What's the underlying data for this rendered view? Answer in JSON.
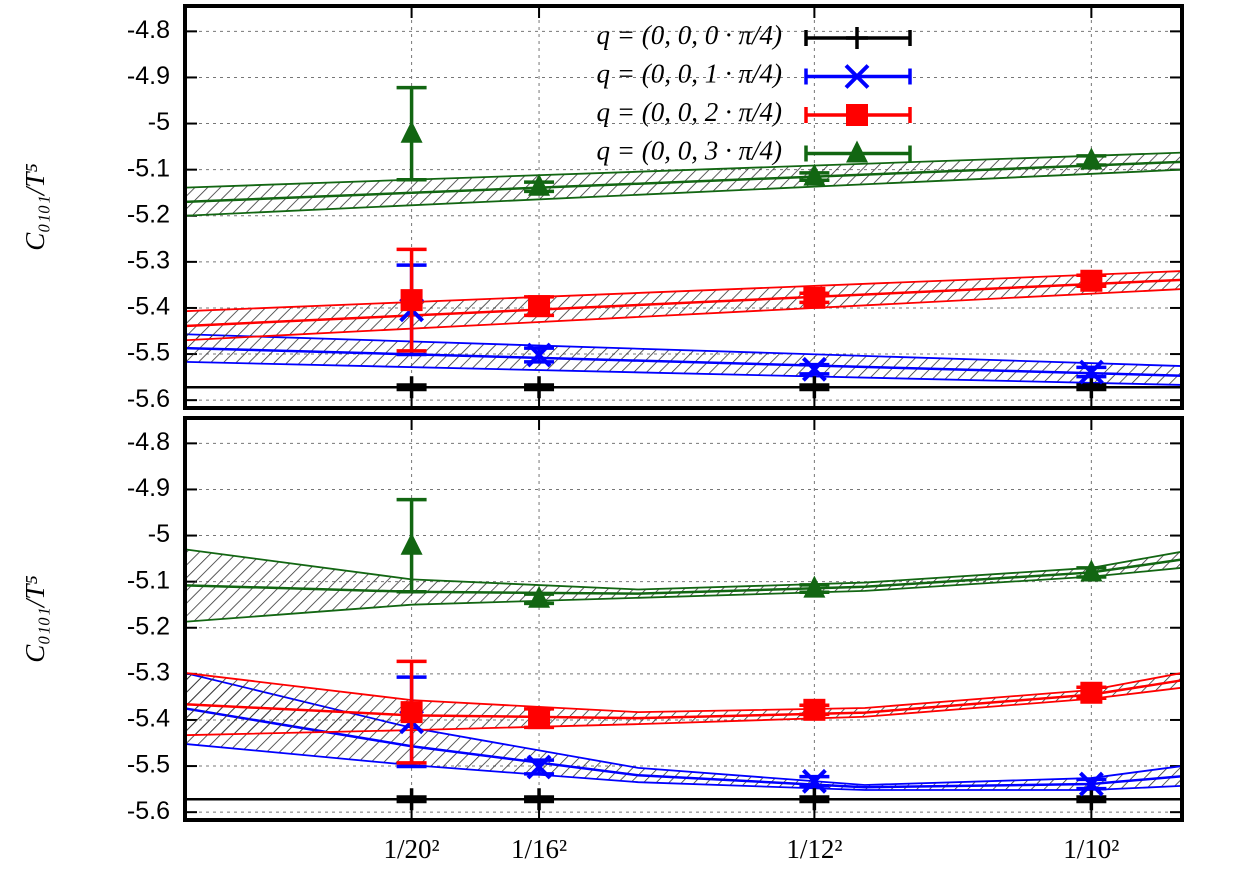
{
  "chart_data": [
    {
      "type": "errorbar",
      "ylabel": "C₀₁₀₁/T⁵",
      "x": [
        0.0025,
        0.00390625,
        0.006944,
        0.01
      ],
      "xlim": [
        0,
        0.011
      ],
      "xticks": [
        0.0025,
        0.00390625,
        0.006944,
        0.01
      ],
      "xtick_labels": false,
      "ylim": [
        -5.617,
        -4.745
      ],
      "yticks": [
        -4.8,
        -4.9,
        -5,
        -5.1,
        -5.2,
        -5.3,
        -5.4,
        -5.5,
        -5.6
      ],
      "grid": true,
      "legend": "top",
      "series": [
        {
          "name": "q = (0, 0, 0 · π/4)",
          "color": "#000000",
          "marker": "plus",
          "values": [
            -5.572,
            -5.572,
            -5.572,
            -5.572
          ],
          "errors": [
            0.005,
            0.005,
            0.005,
            0.005
          ],
          "fit": {
            "x": [
              0,
              0.011
            ],
            "center": [
              -5.572,
              -5.572
            ]
          }
        },
        {
          "name": "q = (0, 0, 1 · π/4)",
          "color": "#0000ff",
          "marker": "x",
          "values": [
            -5.404,
            -5.502,
            -5.533,
            -5.539
          ],
          "errors": [
            0.097,
            0.015,
            0.01,
            0.01
          ],
          "fit": {
            "x": [
              0,
              0.011
            ],
            "center": [
              -5.487,
              -5.547
            ],
            "upper": [
              -5.457,
              -5.526
            ],
            "lower": [
              -5.517,
              -5.567
            ]
          }
        },
        {
          "name": "q = (0, 0, 2 · π/4)",
          "color": "#ff0000",
          "marker": "square",
          "values": [
            -5.383,
            -5.396,
            -5.378,
            -5.341
          ],
          "errors": [
            0.11,
            0.02,
            0.01,
            0.012
          ],
          "fit": {
            "x": [
              0,
              0.011
            ],
            "center": [
              -5.439,
              -5.339
            ],
            "upper": [
              -5.407,
              -5.32
            ],
            "lower": [
              -5.47,
              -5.359
            ]
          }
        },
        {
          "name": "q = (0, 0, 3 · π/4)",
          "color": "#126612",
          "marker": "triangle",
          "values": [
            -5.022,
            -5.137,
            -5.115,
            -5.08
          ],
          "errors": [
            0.1,
            0.01,
            0.008,
            0.01
          ],
          "fit": {
            "x": [
              0,
              0.011
            ],
            "center": [
              -5.17,
              -5.083
            ],
            "upper": [
              -5.139,
              -5.063
            ],
            "lower": [
              -5.2,
              -5.1
            ]
          }
        }
      ]
    },
    {
      "type": "errorbar",
      "ylabel": "C₀₁₀₁/T⁵",
      "x": [
        0.0025,
        0.00390625,
        0.006944,
        0.01
      ],
      "xlim": [
        0,
        0.011
      ],
      "xticks": [
        {
          "value": 0.0025,
          "label": "1/20²"
        },
        {
          "value": 0.00390625,
          "label": "1/16²"
        },
        {
          "value": 0.006944,
          "label": "1/12²"
        },
        {
          "value": 0.01,
          "label": "1/10²"
        }
      ],
      "xtick_labels": true,
      "ylim": [
        -5.617,
        -4.745
      ],
      "yticks": [
        -4.8,
        -4.9,
        -5,
        -5.1,
        -5.2,
        -5.3,
        -5.4,
        -5.5,
        -5.6
      ],
      "grid": true,
      "series": [
        {
          "color": "#000000",
          "marker": "plus",
          "values": [
            -5.572,
            -5.572,
            -5.572,
            -5.572
          ],
          "errors": [
            0.005,
            0.005,
            0.005,
            0.005
          ],
          "fit": {
            "x": [
              0,
              0.011
            ],
            "center": [
              -5.572,
              -5.572
            ]
          }
        },
        {
          "color": "#0000ff",
          "marker": "x",
          "values": [
            -5.404,
            -5.502,
            -5.533,
            -5.539
          ],
          "errors": [
            0.097,
            0.015,
            0.01,
            0.01
          ],
          "fit": {
            "x": [
              0,
              0.0025,
              0.005,
              0.0075,
              0.01,
              0.011
            ],
            "center": [
              -5.375,
              -5.457,
              -5.52,
              -5.546,
              -5.539,
              -5.522
            ],
            "upper": [
              -5.298,
              -5.417,
              -5.504,
              -5.541,
              -5.526,
              -5.5
            ],
            "lower": [
              -5.452,
              -5.498,
              -5.535,
              -5.552,
              -5.552,
              -5.543
            ]
          }
        },
        {
          "color": "#ff0000",
          "marker": "square",
          "values": [
            -5.383,
            -5.396,
            -5.378,
            -5.341
          ],
          "errors": [
            0.11,
            0.02,
            0.01,
            0.012
          ],
          "fit": {
            "x": [
              0,
              0.0025,
              0.005,
              0.0075,
              0.01,
              0.011
            ],
            "center": [
              -5.366,
              -5.39,
              -5.396,
              -5.384,
              -5.345,
              -5.314
            ],
            "upper": [
              -5.298,
              -5.357,
              -5.383,
              -5.374,
              -5.335,
              -5.298
            ],
            "lower": [
              -5.433,
              -5.422,
              -5.409,
              -5.393,
              -5.354,
              -5.33
            ]
          }
        },
        {
          "color": "#126612",
          "marker": "triangle",
          "values": [
            -5.022,
            -5.137,
            -5.115,
            -5.08
          ],
          "errors": [
            0.1,
            0.01,
            0.008,
            0.01
          ],
          "fit": {
            "x": [
              0,
              0.0025,
              0.005,
              0.0075,
              0.01,
              0.011
            ],
            "center": [
              -5.108,
              -5.122,
              -5.126,
              -5.111,
              -5.08,
              -5.052
            ],
            "upper": [
              -5.03,
              -5.095,
              -5.117,
              -5.102,
              -5.07,
              -5.035
            ],
            "lower": [
              -5.187,
              -5.15,
              -5.135,
              -5.12,
              -5.089,
              -5.07
            ]
          }
        }
      ]
    }
  ]
}
